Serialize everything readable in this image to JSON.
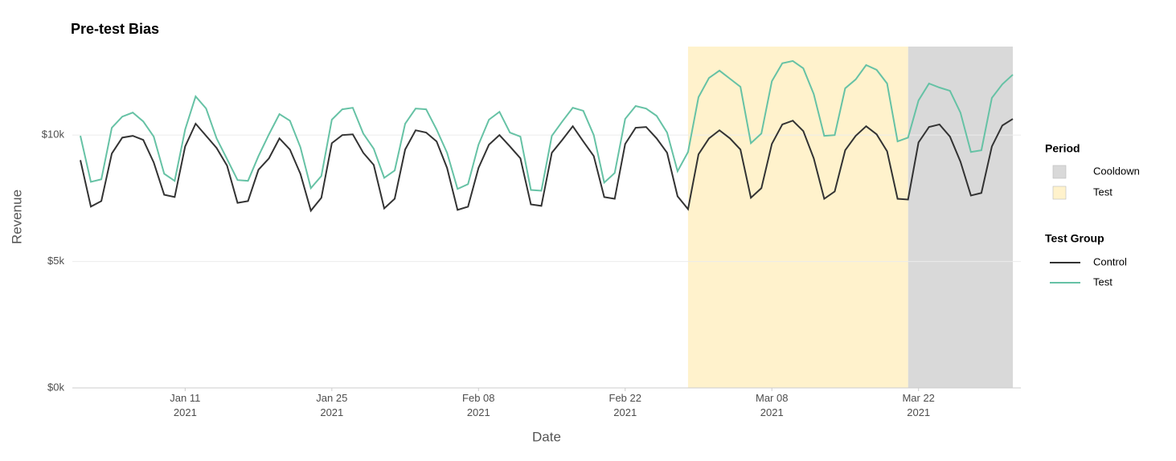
{
  "chart_data": {
    "type": "line",
    "title": "Pre-test Bias",
    "x_label": "Date",
    "y_label": "Revenue",
    "x": [
      "2021-01-01",
      "2021-01-02",
      "2021-01-03",
      "2021-01-04",
      "2021-01-05",
      "2021-01-06",
      "2021-01-07",
      "2021-01-08",
      "2021-01-09",
      "2021-01-10",
      "2021-01-11",
      "2021-01-12",
      "2021-01-13",
      "2021-01-14",
      "2021-01-15",
      "2021-01-16",
      "2021-01-17",
      "2021-01-18",
      "2021-01-19",
      "2021-01-20",
      "2021-01-21",
      "2021-01-22",
      "2021-01-23",
      "2021-01-24",
      "2021-01-25",
      "2021-01-26",
      "2021-01-27",
      "2021-01-28",
      "2021-01-29",
      "2021-01-30",
      "2021-01-31",
      "2021-02-01",
      "2021-02-02",
      "2021-02-03",
      "2021-02-04",
      "2021-02-05",
      "2021-02-06",
      "2021-02-07",
      "2021-02-08",
      "2021-02-09",
      "2021-02-10",
      "2021-02-11",
      "2021-02-12",
      "2021-02-13",
      "2021-02-14",
      "2021-02-15",
      "2021-02-16",
      "2021-02-17",
      "2021-02-18",
      "2021-02-19",
      "2021-02-20",
      "2021-02-21",
      "2021-02-22",
      "2021-02-23",
      "2021-02-24",
      "2021-02-25",
      "2021-02-26",
      "2021-02-27",
      "2021-02-28",
      "2021-03-01",
      "2021-03-02",
      "2021-03-03",
      "2021-03-04",
      "2021-03-05",
      "2021-03-06",
      "2021-03-07",
      "2021-03-08",
      "2021-03-09",
      "2021-03-10",
      "2021-03-11",
      "2021-03-12",
      "2021-03-13",
      "2021-03-14",
      "2021-03-15",
      "2021-03-16",
      "2021-03-17",
      "2021-03-18",
      "2021-03-19",
      "2021-03-20",
      "2021-03-21",
      "2021-03-22",
      "2021-03-23",
      "2021-03-24",
      "2021-03-25",
      "2021-03-26",
      "2021-03-27",
      "2021-03-28",
      "2021-03-29",
      "2021-03-30",
      "2021-03-31"
    ],
    "series": [
      {
        "name": "Control",
        "color": "#333333",
        "values": [
          9010,
          7170,
          7390,
          9270,
          9900,
          9970,
          9810,
          8920,
          7640,
          7550,
          9550,
          10450,
          9970,
          9490,
          8790,
          7320,
          7390,
          8630,
          9080,
          9870,
          9430,
          8470,
          7010,
          7520,
          9680,
          10000,
          10030,
          9300,
          8820,
          7100,
          7480,
          9430,
          10190,
          10100,
          9750,
          8700,
          7040,
          7170,
          8700,
          9620,
          10000,
          9550,
          9080,
          7260,
          7200,
          9300,
          9810,
          10350,
          9750,
          9170,
          7550,
          7480,
          9650,
          10290,
          10320,
          9870,
          9300,
          7580,
          7070,
          9240,
          9870,
          10190,
          9870,
          9430,
          7520,
          7900,
          9650,
          10420,
          10570,
          10160,
          9080,
          7480,
          7770,
          9400,
          9970,
          10350,
          10030,
          9360,
          7480,
          7450,
          9710,
          10320,
          10420,
          9940,
          8950,
          7610,
          7710,
          9550,
          10380,
          10640
        ]
      },
      {
        "name": "Test",
        "color": "#66c2a5",
        "values": [
          9970,
          8150,
          8250,
          10290,
          10730,
          10890,
          10540,
          9940,
          8470,
          8190,
          10220,
          11530,
          11050,
          9870,
          9050,
          8220,
          8190,
          9170,
          10030,
          10830,
          10570,
          9520,
          7900,
          8380,
          10610,
          11020,
          11080,
          10060,
          9460,
          8310,
          8600,
          10450,
          11050,
          11020,
          10220,
          9300,
          7870,
          8060,
          9620,
          10610,
          10920,
          10100,
          9940,
          7830,
          7800,
          9970,
          10540,
          11080,
          10960,
          10000,
          8120,
          8500,
          10640,
          11150,
          11050,
          10760,
          10100,
          8570,
          9330,
          11500,
          12260,
          12550,
          12230,
          11910,
          9680,
          10060,
          12130,
          12840,
          12930,
          12640,
          11620,
          9970,
          10000,
          11850,
          12200,
          12770,
          12580,
          12040,
          9750,
          9900,
          11370,
          12040,
          11880,
          11750,
          10890,
          9330,
          9400,
          11470,
          12010,
          12390
        ]
      }
    ],
    "periods_title": "Period",
    "periods": [
      {
        "name": "Cooldown",
        "start": "2021-03-21",
        "end": "2021-03-31",
        "color": "#d9d9d9"
      },
      {
        "name": "Test",
        "start": "2021-02-28",
        "end": "2021-03-21",
        "color": "#fff2cc"
      }
    ],
    "legend_title": "Test Group",
    "xlim": [
      "2021-01-01",
      "2021-03-31"
    ],
    "xticks": [
      {
        "value": "2021-01-11",
        "label": [
          "Jan 11",
          "2021"
        ]
      },
      {
        "value": "2021-01-25",
        "label": [
          "Jan 25",
          "2021"
        ]
      },
      {
        "value": "2021-02-08",
        "label": [
          "Feb 08",
          "2021"
        ]
      },
      {
        "value": "2021-02-22",
        "label": [
          "Feb 22",
          "2021"
        ]
      },
      {
        "value": "2021-03-08",
        "label": [
          "Mar 08",
          "2021"
        ]
      },
      {
        "value": "2021-03-22",
        "label": [
          "Mar 22",
          "2021"
        ]
      }
    ],
    "ylim": [
      0,
      13500
    ],
    "yticks": [
      {
        "value": 0,
        "label": "$0k"
      },
      {
        "value": 5000,
        "label": "$5k"
      },
      {
        "value": 10000,
        "label": "$10k"
      }
    ],
    "grid": true
  }
}
